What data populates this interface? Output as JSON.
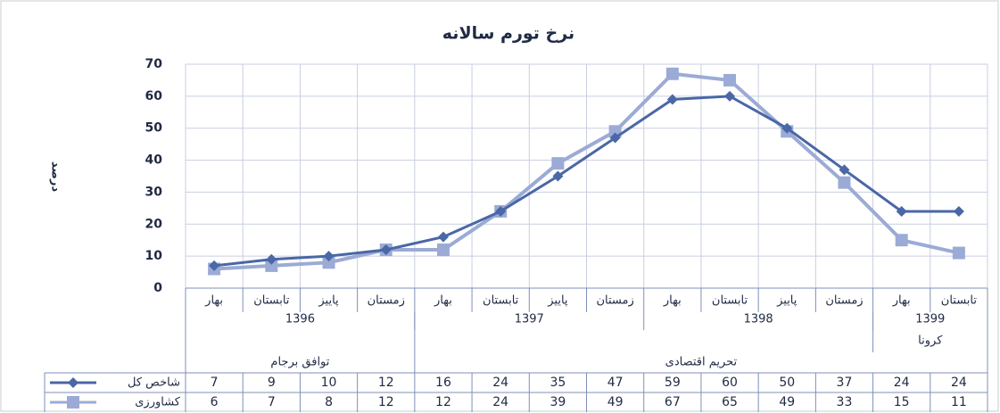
{
  "chart_data": {
    "type": "line",
    "title": "نرخ تورم سالانه",
    "y_label": "درصد",
    "categories": [
      "بهار",
      "تابستان",
      "پاییز",
      "زمستان",
      "بهار",
      "تابستان",
      "پاییز",
      "زمستان",
      "بهار",
      "تابستان",
      "پاییز",
      "زمستان",
      "بهار",
      "تابستان"
    ],
    "year_groups": [
      {
        "label": "1396",
        "span": 4
      },
      {
        "label": "1397",
        "span": 4
      },
      {
        "label": "1398",
        "span": 4
      },
      {
        "label": "1399",
        "span": 2
      }
    ],
    "event_groups": [
      {
        "label": "کرونا",
        "start": 12,
        "span": 2
      }
    ],
    "period_groups": [
      {
        "label": "توافق برجام",
        "span": 4
      },
      {
        "label": "تحریم اقتصادی",
        "span": 10
      }
    ],
    "series": [
      {
        "name": "شاخص کل",
        "color": "#4a67a6",
        "marker": "diamond",
        "values": [
          7,
          9,
          10,
          12,
          16,
          24,
          35,
          47,
          59,
          60,
          50,
          37,
          24,
          24
        ]
      },
      {
        "name": "کشاورزی",
        "color": "#9babd5",
        "marker": "square",
        "values": [
          6,
          7,
          8,
          12,
          12,
          24,
          39,
          49,
          67,
          65,
          49,
          33,
          15,
          11
        ]
      }
    ],
    "ylim": [
      0,
      70
    ],
    "yticks": [
      0,
      10,
      20,
      30,
      40,
      50,
      60,
      70
    ],
    "grid": true
  }
}
